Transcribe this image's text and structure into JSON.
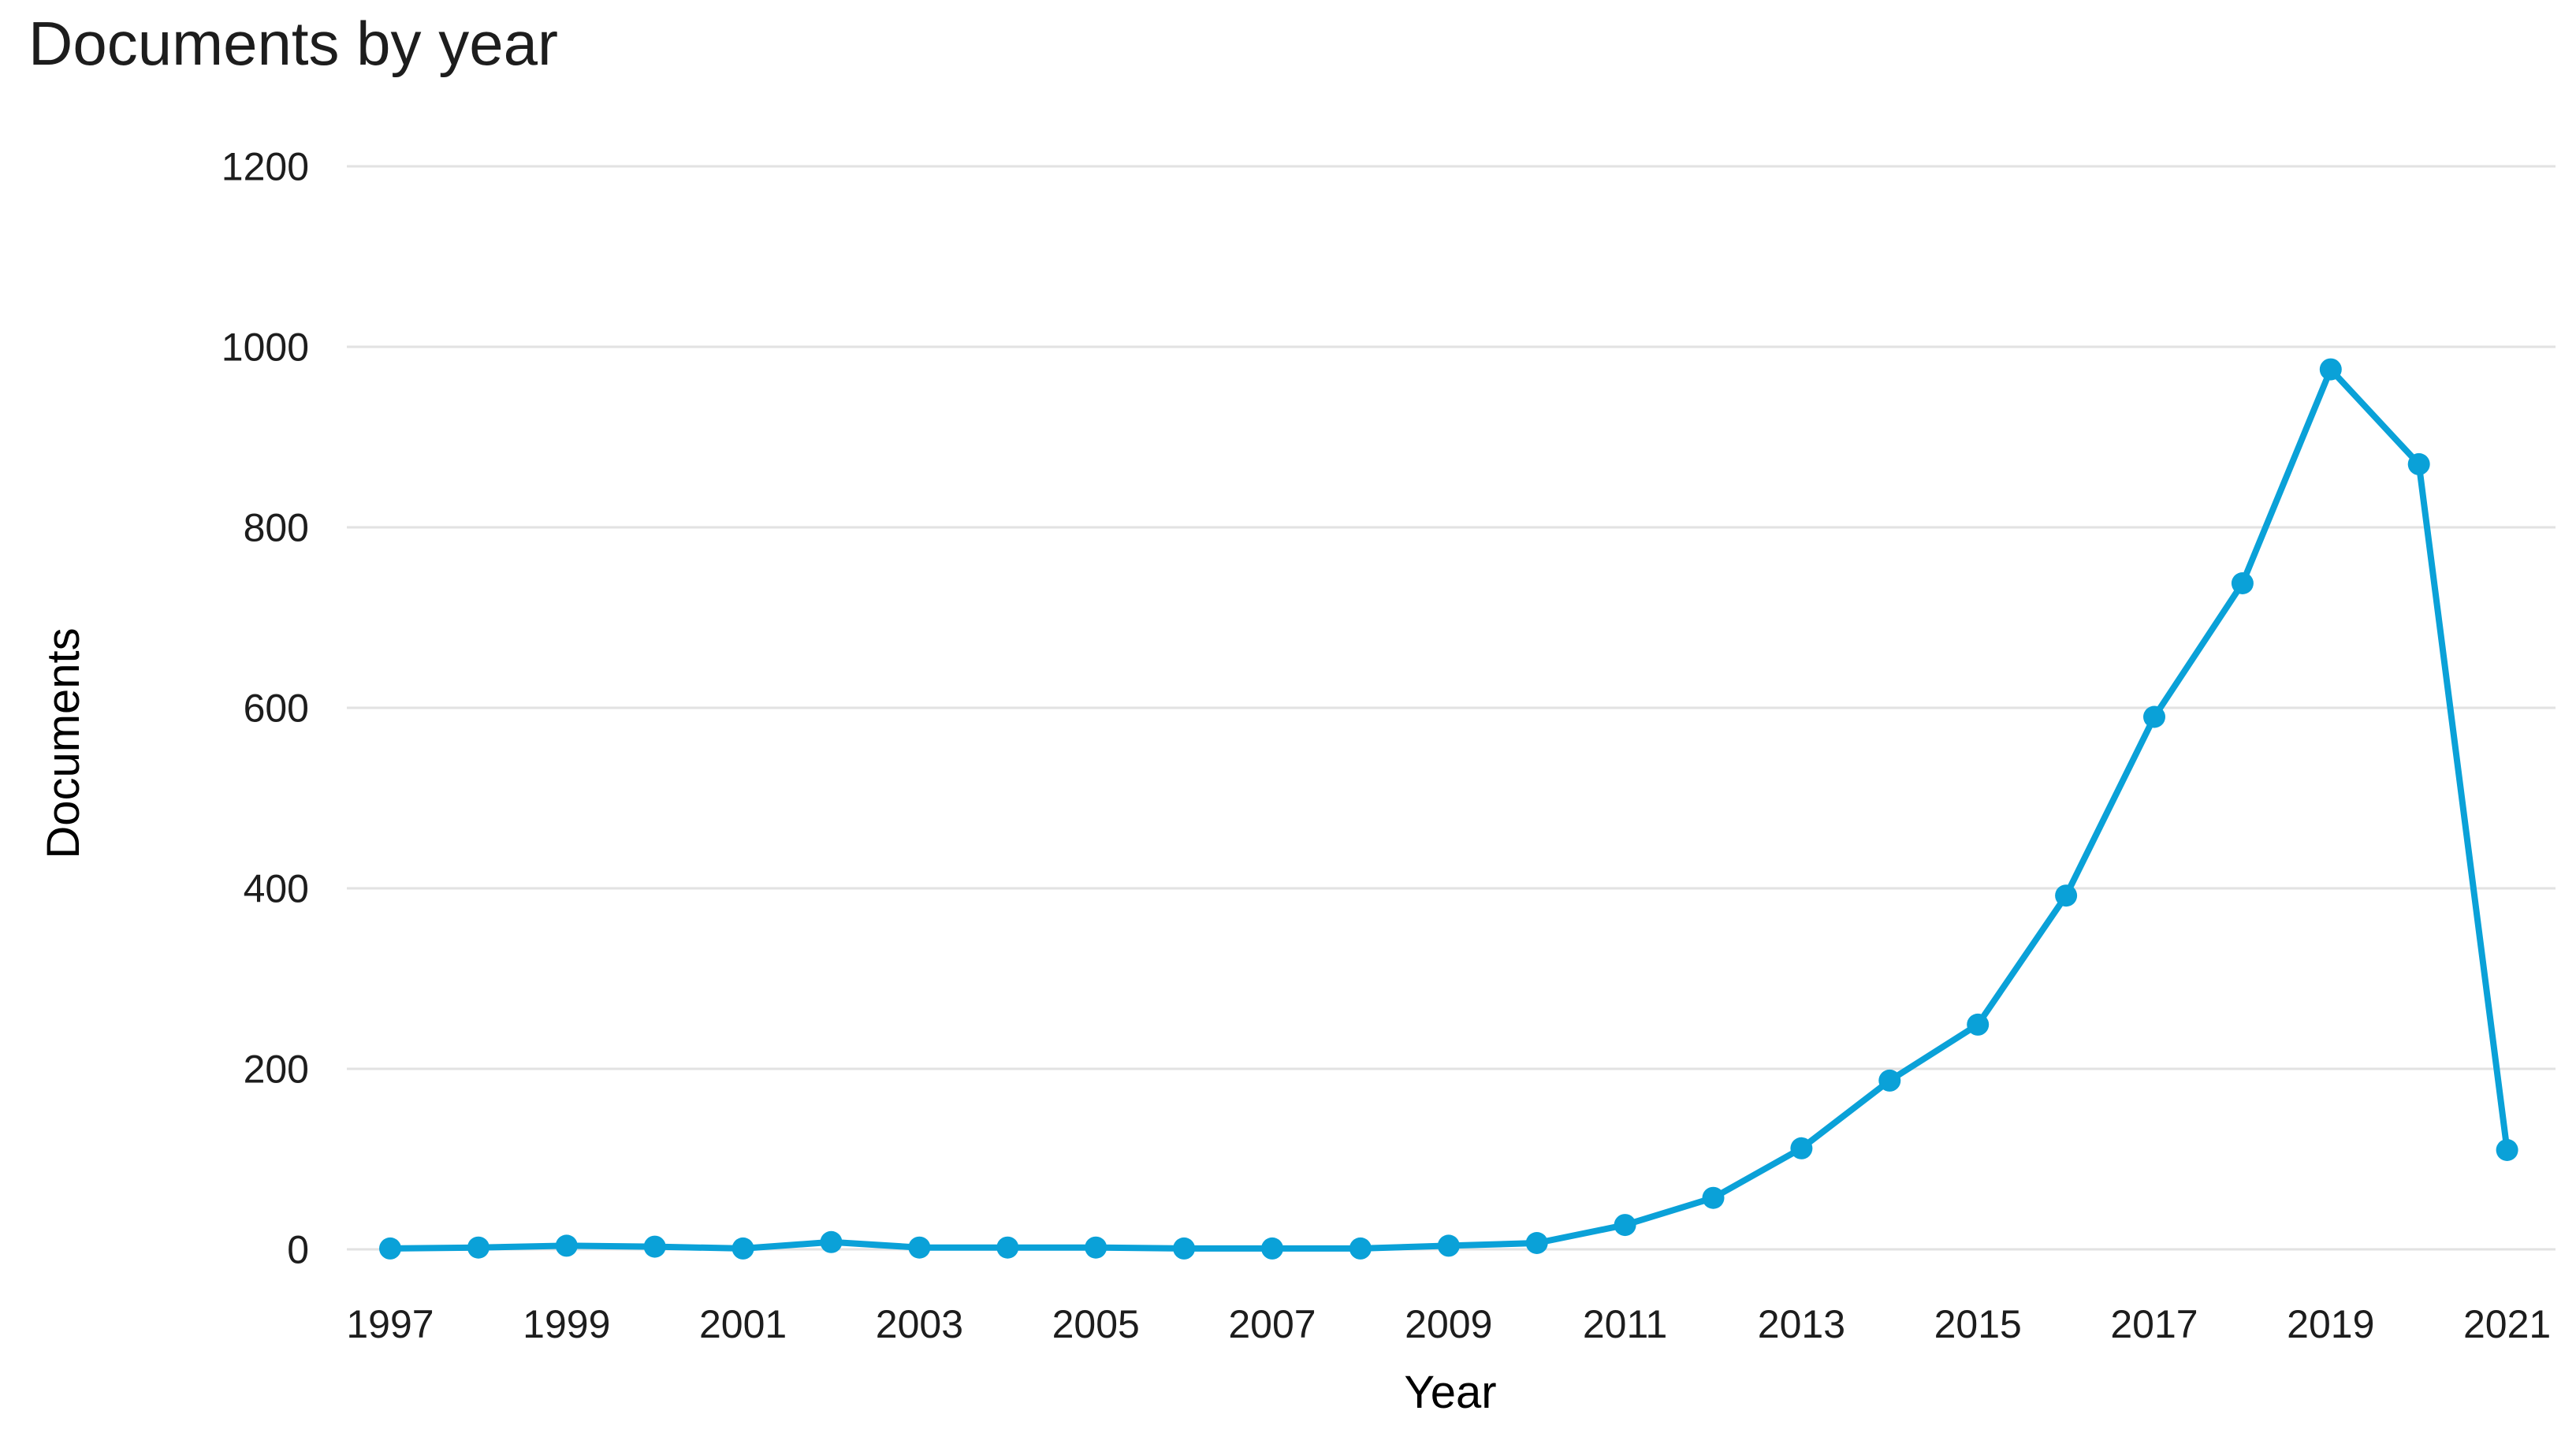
{
  "page": {
    "background": "#ffffff"
  },
  "chart_data": {
    "type": "line",
    "title": "Documents by year",
    "xlabel": "Year",
    "ylabel": "Documents",
    "x": [
      1997,
      1998,
      1999,
      2000,
      2001,
      2002,
      2003,
      2004,
      2005,
      2006,
      2007,
      2008,
      2009,
      2010,
      2011,
      2012,
      2013,
      2014,
      2015,
      2016,
      2017,
      2018,
      2019,
      2020,
      2021
    ],
    "series": [
      {
        "name": "Documents",
        "values": [
          1,
          2,
          4,
          3,
          1,
          8,
          2,
          2,
          2,
          1,
          1,
          1,
          4,
          7,
          27,
          57,
          112,
          187,
          249,
          392,
          590,
          738,
          975,
          870,
          110
        ]
      }
    ],
    "ylim": [
      0,
      1200
    ],
    "y_ticks": [
      0,
      200,
      400,
      600,
      800,
      1000,
      1200
    ],
    "x_tick_labels": [
      "1997",
      "1999",
      "2001",
      "2003",
      "2005",
      "2007",
      "2009",
      "2011",
      "2013",
      "2015",
      "2017",
      "2019",
      "2021"
    ],
    "grid": "horizontal-only",
    "legend": "none",
    "line_color": "#0aa1d8",
    "marker_color": "#0aa1d8",
    "grid_color": "#e2e2e2",
    "text_color": "#1d1d1d"
  }
}
